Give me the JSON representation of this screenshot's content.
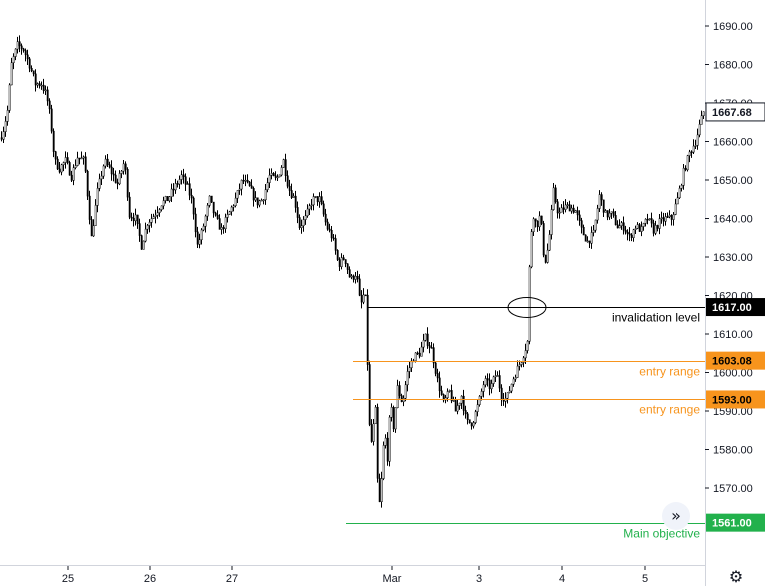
{
  "chart_data": {
    "type": "candlestick",
    "y_axis": {
      "range": [
        1561.5,
        1694.5
      ],
      "ticks": [
        1690,
        1680,
        1670,
        1660,
        1650,
        1640,
        1630,
        1620,
        1610,
        1600,
        1590,
        1580,
        1570
      ],
      "tick_labels": [
        "1690.00",
        "1680.00",
        "1670.00",
        "1660.00",
        "1650.00",
        "1640.00",
        "1630.00",
        "1620.00",
        "1610.00",
        "1600.00",
        "1590.00",
        "1580.00",
        "1570.00"
      ]
    },
    "x_axis": {
      "tick_labels": [
        "25",
        "26",
        "27",
        "Mar",
        "3",
        "4",
        "5"
      ]
    },
    "path": [
      [
        0,
        1661
      ],
      [
        3,
        1662
      ],
      [
        8,
        1668
      ],
      [
        12,
        1680
      ],
      [
        18,
        1685
      ],
      [
        24,
        1684
      ],
      [
        30,
        1680
      ],
      [
        36,
        1675
      ],
      [
        42,
        1675
      ],
      [
        47,
        1672
      ],
      [
        51,
        1666
      ],
      [
        55,
        1655
      ],
      [
        60,
        1653
      ],
      [
        66,
        1655
      ],
      [
        72,
        1651
      ],
      [
        78,
        1656
      ],
      [
        85,
        1655
      ],
      [
        92,
        1635
      ],
      [
        98,
        1647
      ],
      [
        105,
        1655
      ],
      [
        112,
        1652
      ],
      [
        118,
        1649
      ],
      [
        125,
        1655
      ],
      [
        130,
        1641
      ],
      [
        136,
        1640
      ],
      [
        142,
        1633
      ],
      [
        148,
        1639
      ],
      [
        155,
        1641
      ],
      [
        162,
        1644
      ],
      [
        168,
        1645
      ],
      [
        175,
        1648
      ],
      [
        182,
        1651
      ],
      [
        188,
        1648
      ],
      [
        193,
        1644
      ],
      [
        198,
        1633
      ],
      [
        203,
        1637
      ],
      [
        210,
        1645
      ],
      [
        216,
        1640
      ],
      [
        222,
        1637
      ],
      [
        229,
        1641
      ],
      [
        236,
        1645
      ],
      [
        243,
        1650
      ],
      [
        250,
        1648
      ],
      [
        257,
        1644
      ],
      [
        263,
        1645
      ],
      [
        270,
        1651
      ],
      [
        277,
        1650
      ],
      [
        284,
        1655
      ],
      [
        289,
        1648
      ],
      [
        295,
        1645
      ],
      [
        300,
        1638
      ],
      [
        306,
        1640
      ],
      [
        313,
        1645
      ],
      [
        320,
        1645
      ],
      [
        327,
        1638
      ],
      [
        333,
        1635
      ],
      [
        339,
        1628
      ],
      [
        345,
        1630
      ],
      [
        351,
        1624
      ],
      [
        357,
        1626
      ],
      [
        361,
        1617
      ],
      [
        365,
        1621
      ],
      [
        367,
        1617
      ],
      [
        369,
        1588
      ],
      [
        372,
        1582
      ],
      [
        376,
        1590
      ],
      [
        379,
        1563
      ],
      [
        382,
        1572
      ],
      [
        385,
        1585
      ],
      [
        388,
        1578
      ],
      [
        391,
        1592
      ],
      [
        394,
        1586
      ],
      [
        398,
        1596
      ],
      [
        403,
        1592
      ],
      [
        408,
        1600
      ],
      [
        414,
        1604
      ],
      [
        420,
        1605
      ],
      [
        426,
        1609
      ],
      [
        432,
        1606
      ],
      [
        438,
        1598
      ],
      [
        444,
        1592
      ],
      [
        450,
        1595
      ],
      [
        456,
        1590
      ],
      [
        462,
        1594
      ],
      [
        467,
        1587
      ],
      [
        473,
        1587
      ],
      [
        479,
        1592
      ],
      [
        485,
        1598
      ],
      [
        491,
        1596
      ],
      [
        497,
        1600
      ],
      [
        502,
        1594
      ],
      [
        507,
        1593
      ],
      [
        513,
        1598
      ],
      [
        518,
        1601
      ],
      [
        523,
        1604
      ],
      [
        528,
        1608
      ],
      [
        530,
        1627
      ],
      [
        533,
        1642
      ],
      [
        537,
        1638
      ],
      [
        541,
        1641
      ],
      [
        545,
        1628
      ],
      [
        549,
        1633
      ],
      [
        554,
        1647
      ],
      [
        559,
        1641
      ],
      [
        565,
        1643
      ],
      [
        570,
        1643
      ],
      [
        576,
        1642
      ],
      [
        582,
        1637
      ],
      [
        588,
        1634
      ],
      [
        594,
        1636
      ],
      [
        600,
        1646
      ],
      [
        606,
        1641
      ],
      [
        612,
        1641
      ],
      [
        618,
        1638
      ],
      [
        624,
        1638
      ],
      [
        630,
        1635
      ],
      [
        636,
        1638
      ],
      [
        642,
        1637
      ],
      [
        648,
        1640
      ],
      [
        654,
        1637
      ],
      [
        660,
        1639
      ],
      [
        666,
        1640
      ],
      [
        672,
        1640
      ],
      [
        678,
        1645
      ],
      [
        684,
        1652
      ],
      [
        690,
        1657
      ],
      [
        696,
        1660
      ],
      [
        700,
        1664
      ],
      [
        704,
        1667.68
      ]
    ],
    "last_price": {
      "value": 1667.68,
      "label": "1667.68"
    },
    "levels": [
      {
        "price": 1617.0,
        "label": "1617.00",
        "text": "invalidation level",
        "color": "#000000",
        "tag_text_color": "#ffffff"
      },
      {
        "price": 1603.08,
        "label": "1603.08",
        "text": "entry range",
        "color": "#f7941d",
        "tag_text_color": "#000000"
      },
      {
        "price": 1593.0,
        "label": "1593.00",
        "text": "entry range",
        "color": "#f7941d",
        "tag_text_color": "#000000"
      },
      {
        "price": 1561.0,
        "label": "1561.00",
        "text": "Main objective",
        "color": "#22b14c",
        "tag_text_color": "#ffffff"
      }
    ],
    "grid": false,
    "colors": {
      "candle": "#000000",
      "candle_up_body": "#ffffff",
      "axis": "#131722"
    }
  },
  "ui": {
    "scroll_button_icon": "chevron-double-right-icon",
    "settings_icon": "gear-icon"
  }
}
